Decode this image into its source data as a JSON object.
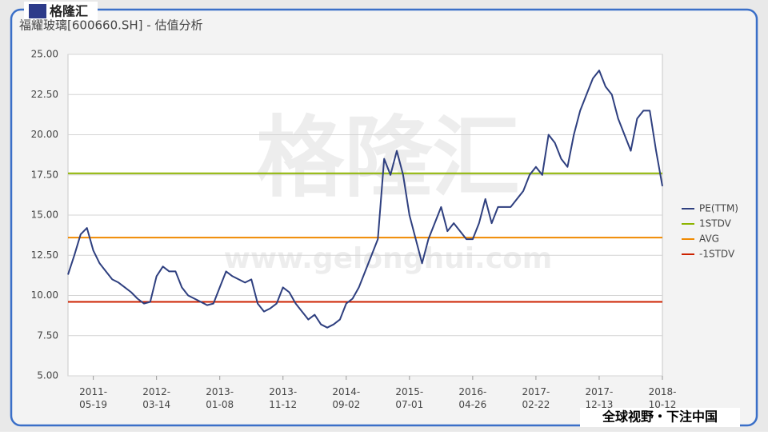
{
  "logo": "格隆汇",
  "slogan": "全球视野・下注中国",
  "watermark": {
    "text": "格隆汇",
    "url": "www.gelonghui.com"
  },
  "chart_data": {
    "type": "line",
    "title": "福耀玻璃[600660.SH] - 估值分析",
    "categories": [
      null,
      null,
      null,
      null,
      "2011-05-19",
      null,
      null,
      null,
      null,
      null,
      null,
      null,
      null,
      null,
      "2012-03-14",
      null,
      null,
      null,
      null,
      null,
      null,
      null,
      null,
      null,
      "2013-01-08",
      null,
      null,
      null,
      null,
      null,
      null,
      null,
      null,
      null,
      "2013-11-12",
      null,
      null,
      null,
      null,
      null,
      null,
      null,
      null,
      null,
      "2014-09-02",
      null,
      null,
      null,
      null,
      null,
      null,
      null,
      null,
      null,
      "2015-07-01",
      null,
      null,
      null,
      null,
      null,
      null,
      null,
      null,
      null,
      "2016-04-26",
      null,
      null,
      null,
      null,
      null,
      null,
      null,
      null,
      null,
      "2017-02-22",
      null,
      null,
      null,
      null,
      null,
      null,
      null,
      null,
      null,
      "2017-12-13",
      null,
      null,
      null,
      null,
      null,
      null,
      null,
      null,
      null,
      "2018-10-12"
    ],
    "series": [
      {
        "name": "PE(TTM)",
        "color": "#2e3f7f",
        "values": [
          11.3,
          12.5,
          13.8,
          14.2,
          12.8,
          12.0,
          11.5,
          11.0,
          10.8,
          10.5,
          10.2,
          9.8,
          9.5,
          9.6,
          11.2,
          11.8,
          11.5,
          11.5,
          10.5,
          10.0,
          9.8,
          9.6,
          9.4,
          9.5,
          10.5,
          11.5,
          11.2,
          11.0,
          10.8,
          11.0,
          9.5,
          9.0,
          9.2,
          9.5,
          10.5,
          10.2,
          9.5,
          9.0,
          8.5,
          8.8,
          8.2,
          8.0,
          8.2,
          8.5,
          9.5,
          9.8,
          10.5,
          11.5,
          12.5,
          13.5,
          18.5,
          17.5,
          19.0,
          17.5,
          15.0,
          13.5,
          12.0,
          13.5,
          14.5,
          15.5,
          14.0,
          14.5,
          14.0,
          13.5,
          13.5,
          14.5,
          16.0,
          14.5,
          15.5,
          15.5,
          15.5,
          16.0,
          16.5,
          17.5,
          18.0,
          17.5,
          20.0,
          19.5,
          18.5,
          18.0,
          20.0,
          21.5,
          22.5,
          23.5,
          24.0,
          23.0,
          22.5,
          21.0,
          20.0,
          19.0,
          21.0,
          21.5,
          21.5,
          19.0,
          16.8
        ]
      }
    ],
    "reference_lines": [
      {
        "name": "1STDV",
        "color": "#8db400",
        "value": 17.6
      },
      {
        "name": "AVG",
        "color": "#f08a00",
        "value": 13.6
      },
      {
        "name": "-1STDV",
        "color": "#cc2200",
        "value": 9.6
      }
    ],
    "ylim": [
      5,
      25
    ],
    "yticks": [
      {
        "value": 5,
        "label": "5.00"
      },
      {
        "value": 7.5,
        "label": "7.50"
      },
      {
        "value": 10,
        "label": "10.00"
      },
      {
        "value": 12.5,
        "label": "12.50"
      },
      {
        "value": 15,
        "label": "15.00"
      },
      {
        "value": 17.5,
        "label": "17.50"
      },
      {
        "value": 20,
        "label": "20.00"
      },
      {
        "value": 22.5,
        "label": "22.50"
      },
      {
        "value": 25,
        "label": "25.00"
      }
    ],
    "grid": true,
    "legend": "right"
  }
}
